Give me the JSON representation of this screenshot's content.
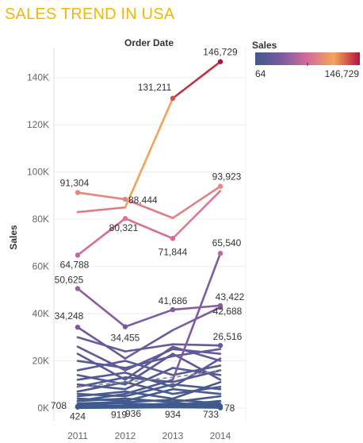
{
  "title": "SALES TREND IN USA",
  "colors": {
    "title": "#f2b705",
    "gradient": [
      "#3e5a8c",
      "#7a5aa0",
      "#d66b9b",
      "#f2a65a",
      "#b5123f"
    ]
  },
  "legend": {
    "title": "Sales",
    "min_label": "64",
    "max_label": "146,729",
    "min": 64,
    "max": 146729
  },
  "chart_data": {
    "type": "line",
    "x": [
      "2011",
      "2012",
      "2013",
      "2014"
    ],
    "xlabel": "Order Date",
    "ylabel": "Sales",
    "ylim": [
      0,
      150000
    ],
    "yticks": [
      {
        "value": 0,
        "label": "0K"
      },
      {
        "value": 20000,
        "label": "20K"
      },
      {
        "value": 40000,
        "label": "40K"
      },
      {
        "value": 60000,
        "label": "60K"
      },
      {
        "value": 80000,
        "label": "80K"
      },
      {
        "value": 100000,
        "label": "100K"
      },
      {
        "value": 120000,
        "label": "120K"
      },
      {
        "value": 140000,
        "label": "140K"
      }
    ],
    "grid": "horizontal",
    "color_by": "Sales",
    "series": [
      {
        "values": [
          83000,
          85000,
          131211,
          146729
        ]
      },
      {
        "values": [
          91304,
          88444,
          80500,
          93923
        ]
      },
      {
        "values": [
          64788,
          80321,
          71844,
          92000
        ]
      },
      {
        "values": [
          3000,
          6000,
          12000,
          65540
        ]
      },
      {
        "values": [
          50625,
          34455,
          41686,
          43422
        ]
      },
      {
        "values": [
          34248,
          21000,
          33000,
          42688
        ]
      },
      {
        "values": [
          30000,
          24000,
          27000,
          26516
        ]
      },
      {
        "values": [
          26000,
          16000,
          25000,
          23000
        ]
      },
      {
        "values": [
          23000,
          12000,
          26000,
          20000
        ]
      },
      {
        "values": [
          20000,
          17000,
          22000,
          25000
        ]
      },
      {
        "values": [
          16000,
          20000,
          14000,
          18000
        ]
      },
      {
        "values": [
          14000,
          10000,
          23000,
          12000
        ]
      },
      {
        "values": [
          12000,
          15000,
          9000,
          21000
        ]
      },
      {
        "values": [
          10000,
          8000,
          17000,
          14000
        ]
      },
      {
        "values": [
          9000,
          13000,
          11000,
          16000
        ]
      },
      {
        "values": [
          7000,
          11000,
          6000,
          9000
        ]
      },
      {
        "values": [
          6000,
          5000,
          10000,
          8000
        ]
      },
      {
        "values": [
          5000,
          7000,
          4000,
          11000
        ]
      },
      {
        "values": [
          4000,
          3000,
          8000,
          6000
        ]
      },
      {
        "values": [
          3000,
          4000,
          2500,
          5000
        ]
      },
      {
        "values": [
          2000,
          2500,
          3500,
          2000
        ]
      },
      {
        "values": [
          1500,
          2000,
          1200,
          3000
        ]
      },
      {
        "values": [
          708,
          1000,
          2000,
          1500
        ]
      },
      {
        "values": [
          1000,
          919,
          934,
          733
        ]
      },
      {
        "values": [
          800,
          936,
          1500,
          78
        ]
      },
      {
        "values": [
          424,
          600,
          800,
          1000
        ]
      },
      {
        "values": [
          300,
          500,
          400,
          600
        ]
      },
      {
        "values": [
          64,
          200,
          300,
          150
        ]
      }
    ],
    "reference_line": {
      "style": "dashed",
      "values": [
        9000,
        11000,
        13000,
        16000
      ]
    },
    "data_labels": [
      {
        "text": "146,729",
        "x": "2014",
        "y": 146729
      },
      {
        "text": "131,211",
        "x": "2013",
        "y": 131211
      },
      {
        "text": "91,304",
        "x": "2011",
        "y": 91304
      },
      {
        "text": "88,444",
        "x": "2012",
        "y": 88444
      },
      {
        "text": "93,923",
        "x": "2014",
        "y": 93923
      },
      {
        "text": "80,321",
        "x": "2012",
        "y": 80321
      },
      {
        "text": "64,788",
        "x": "2011",
        "y": 64788
      },
      {
        "text": "71,844",
        "x": "2013",
        "y": 71844
      },
      {
        "text": "65,540",
        "x": "2014",
        "y": 65540
      },
      {
        "text": "50,625",
        "x": "2011",
        "y": 50625
      },
      {
        "text": "41,686",
        "x": "2013",
        "y": 41686
      },
      {
        "text": "43,422",
        "x": "2014",
        "y": 43422
      },
      {
        "text": "34,248",
        "x": "2011",
        "y": 34248
      },
      {
        "text": "34,455",
        "x": "2012",
        "y": 34455
      },
      {
        "text": "42,688",
        "x": "2014",
        "y": 42688
      },
      {
        "text": "26,516",
        "x": "2014",
        "y": 26516
      },
      {
        "text": "708",
        "x": "2011",
        "y": 708
      },
      {
        "text": "424",
        "x": "2011",
        "y": 424
      },
      {
        "text": "919",
        "x": "2012",
        "y": 919
      },
      {
        "text": "936",
        "x": "2012",
        "y": 936
      },
      {
        "text": "934",
        "x": "2013",
        "y": 934
      },
      {
        "text": "733",
        "x": "2014",
        "y": 733
      },
      {
        "text": "78",
        "x": "2014",
        "y": 78
      }
    ]
  }
}
